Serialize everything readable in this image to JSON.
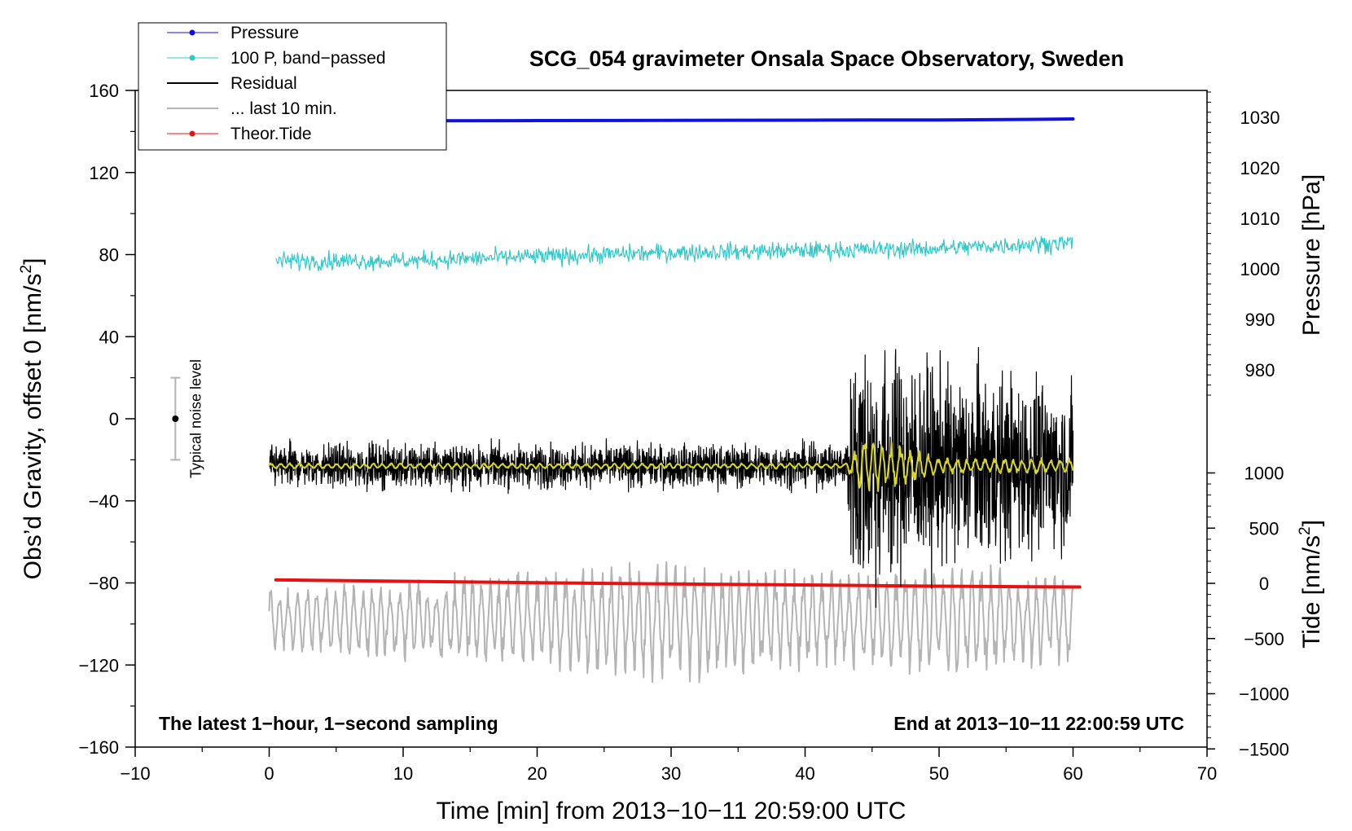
{
  "chart_data": {
    "type": "line",
    "title": "SCG_054 gravimeter Onsala Space Observatory, Sweden",
    "xlabel": "Time [min] from 2013−10−11 20:59:00 UTC",
    "ylabel": "Obs’d Gravity, offset 0 [nm/s",
    "ylabel_sup": "2",
    "ylabel_close": "]",
    "y2label": "Pressure [hPa]",
    "y3label": "Tide [nm/s",
    "y3label_sup": "2",
    "y3label_close": "]",
    "xlim": [
      -10,
      70
    ],
    "ylim": [
      -160,
      160
    ],
    "x_ticks": [
      -10,
      0,
      10,
      20,
      30,
      40,
      50,
      60,
      70
    ],
    "x_tick_labels": [
      "−10",
      "0",
      "10",
      "20",
      "30",
      "40",
      "50",
      "60",
      "70"
    ],
    "y_ticks": [
      -160,
      -120,
      -80,
      -40,
      0,
      40,
      80,
      120,
      160
    ],
    "y_tick_labels": [
      "−160",
      "−120",
      "−80",
      "−40",
      "0",
      "40",
      "80",
      "120",
      "160"
    ],
    "pressure_ticks": [
      980,
      990,
      1000,
      1010,
      1020,
      1030
    ],
    "pressure_tick_labels": [
      "980",
      "990",
      "1000",
      "1010",
      "1020",
      "1030"
    ],
    "tide_ticks": [
      -1500,
      -1000,
      -500,
      0,
      500,
      1000
    ],
    "tide_tick_labels": [
      "−1500",
      "−1000",
      "−500",
      "0",
      "500",
      "1000"
    ],
    "annotations": {
      "bottom_left": "The latest 1−hour, 1−second sampling",
      "bottom_right": "End at 2013−10−11 22:00:59 UTC",
      "noise_label": "Typical noise level"
    },
    "noise_bar": {
      "x": -7,
      "center": 0,
      "half_range": 20
    },
    "legend": [
      {
        "label": "Pressure",
        "color": "#1010e0",
        "marker": true,
        "width": 1
      },
      {
        "label": "100 P, band−passed",
        "color": "#30c8c8",
        "marker": true,
        "width": 1
      },
      {
        "label": "Residual",
        "color": "#000000",
        "marker": false,
        "width": 2
      },
      {
        "label": "... last 10 min.",
        "color": "#b4b4b4",
        "marker": false,
        "width": 2
      },
      {
        "label": "Theor.Tide",
        "color": "#e81010",
        "marker": true,
        "width": 1
      }
    ],
    "series": [
      {
        "name": "Pressure",
        "color": "#1010e0",
        "x": [
          0.5,
          10,
          20,
          30,
          40,
          45,
          50,
          55,
          60
        ],
        "y": [
          145.1,
          145.2,
          145.3,
          145.4,
          145.5,
          145.6,
          145.6,
          145.8,
          146.1
        ]
      },
      {
        "name": "100 P, band−passed",
        "color": "#30c8c8",
        "x": [
          0.5,
          10,
          20,
          30,
          40,
          50,
          60
        ],
        "y": [
          77,
          77,
          79,
          81,
          82,
          83,
          86
        ],
        "noise_amp": 3
      },
      {
        "name": "Residual",
        "color": "#000000",
        "x": [
          0,
          43,
          43.7,
          46,
          50,
          55,
          60
        ],
        "y": [
          -23,
          -23,
          -23,
          -23,
          -23,
          -23,
          -23
        ],
        "noise_amp": [
          7,
          7,
          45,
          38,
          32,
          30,
          25
        ]
      },
      {
        "name": "Residual (smoothed)",
        "color": "#d8d820",
        "x": [
          0,
          43,
          44.5,
          47,
          50,
          60
        ],
        "y": [
          -23,
          -23,
          -23,
          -23,
          -23,
          -23
        ],
        "noise_amp": [
          1.5,
          1.5,
          16,
          12,
          4,
          4
        ]
      },
      {
        "name": "... last 10 min.",
        "color": "#b4b4b4",
        "x": [
          0,
          12,
          30,
          45,
          50,
          60
        ],
        "y": [
          -98,
          -98,
          -98,
          -98,
          -98,
          -98
        ],
        "noise_amp": [
          16,
          22,
          32,
          24,
          30,
          22
        ]
      },
      {
        "name": "Theor.Tide",
        "color": "#e81010",
        "x": [
          0.5,
          10,
          20,
          30,
          40,
          50,
          60.5
        ],
        "y": [
          -78.5,
          -79.2,
          -79.9,
          -80.5,
          -81,
          -81.6,
          -82
        ]
      }
    ]
  }
}
